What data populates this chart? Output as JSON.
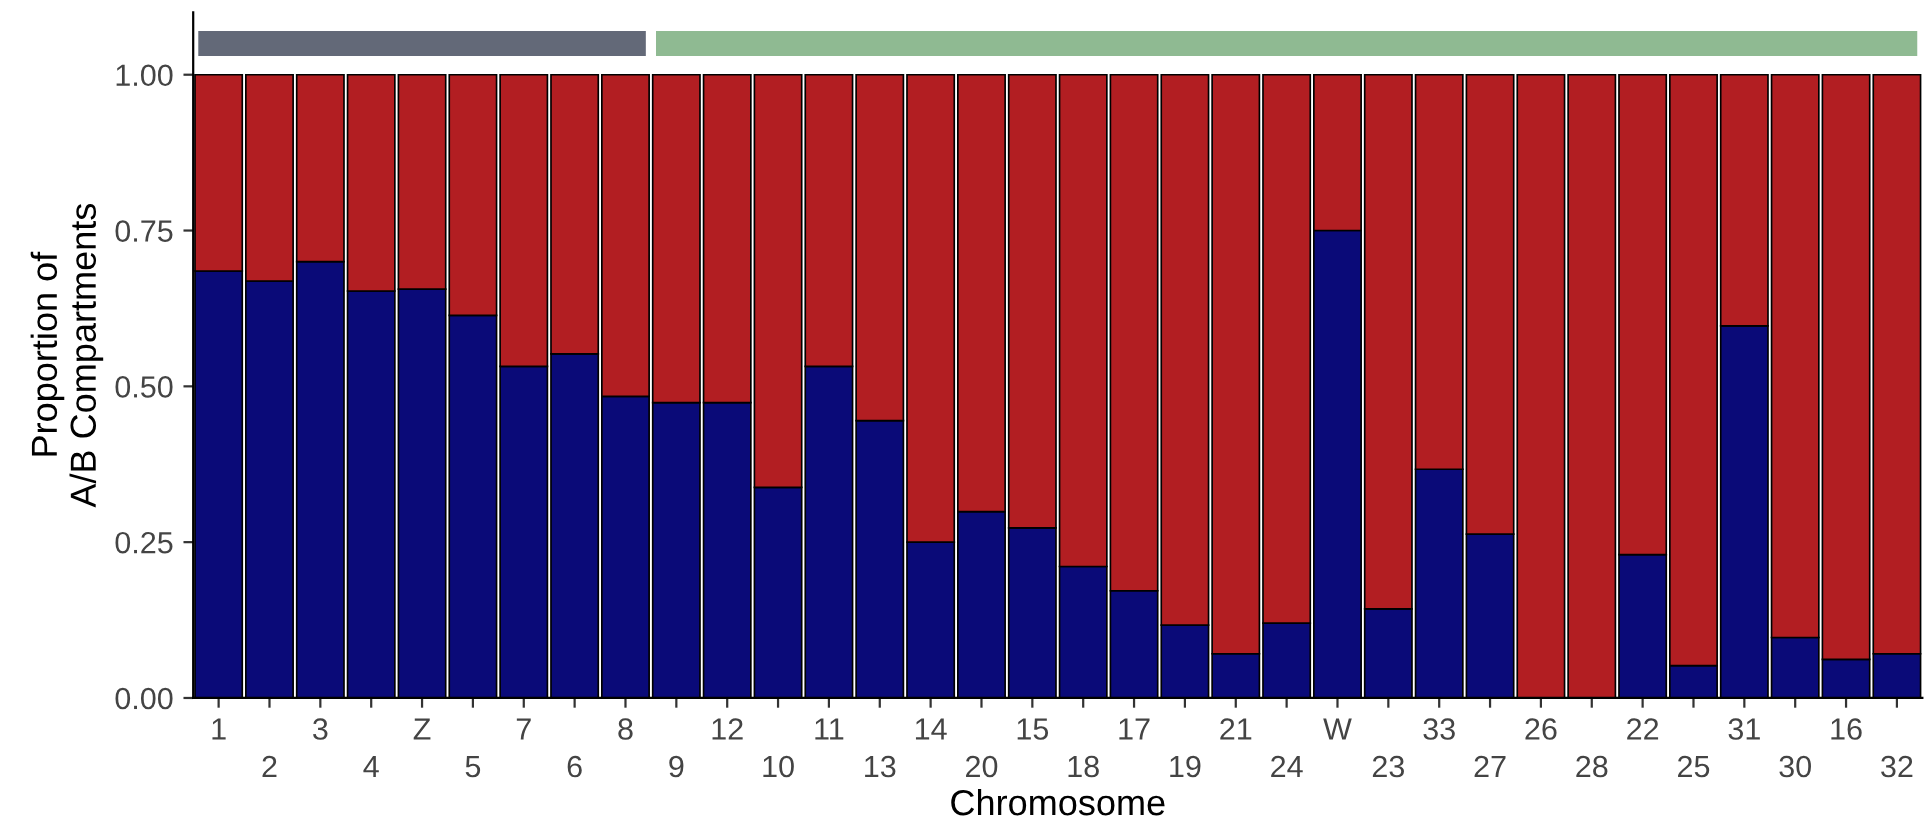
{
  "chart_data": {
    "type": "bar",
    "stacked": true,
    "xlabel": "Chromosome",
    "ylabel": "Proportion of\nA/B Compartments",
    "categories": [
      "1",
      "2",
      "3",
      "4",
      "Z",
      "5",
      "7",
      "6",
      "8",
      "9",
      "12",
      "10",
      "11",
      "13",
      "14",
      "20",
      "15",
      "18",
      "17",
      "19",
      "21",
      "24",
      "W",
      "23",
      "33",
      "27",
      "26",
      "28",
      "22",
      "25",
      "31",
      "30",
      "16",
      "32"
    ],
    "series": [
      {
        "color": "#0a0a78",
        "values": [
          0.685,
          0.669,
          0.7,
          0.653,
          0.656,
          0.614,
          0.532,
          0.552,
          0.484,
          0.474,
          0.474,
          0.338,
          0.532,
          0.445,
          0.25,
          0.299,
          0.273,
          0.211,
          0.172,
          0.117,
          0.071,
          0.12,
          0.75,
          0.143,
          0.367,
          0.263,
          0,
          0,
          0.23,
          0.052,
          0.597,
          0.097,
          0.062,
          0.071
        ]
      },
      {
        "color": "#b21e22",
        "values": [
          0.315,
          0.331,
          0.3,
          0.347,
          0.344,
          0.386,
          0.468,
          0.448,
          0.516,
          0.526,
          0.526,
          0.662,
          0.468,
          0.555,
          0.75,
          0.701,
          0.727,
          0.789,
          0.828,
          0.883,
          0.929,
          0.88,
          0.25,
          0.857,
          0.633,
          0.737,
          1,
          1,
          0.77,
          0.948,
          0.403,
          0.903,
          0.938,
          0.929
        ]
      }
    ],
    "ylim": [
      0,
      1.1
    ],
    "yticks": [
      {
        "value": 0,
        "label": "0.00"
      },
      {
        "value": 0.25,
        "label": "0.25"
      },
      {
        "value": 0.5,
        "label": "0.50"
      },
      {
        "value": 0.75,
        "label": "0.75"
      },
      {
        "value": 1,
        "label": "1.00"
      }
    ],
    "grid": false,
    "legend": false
  }
}
